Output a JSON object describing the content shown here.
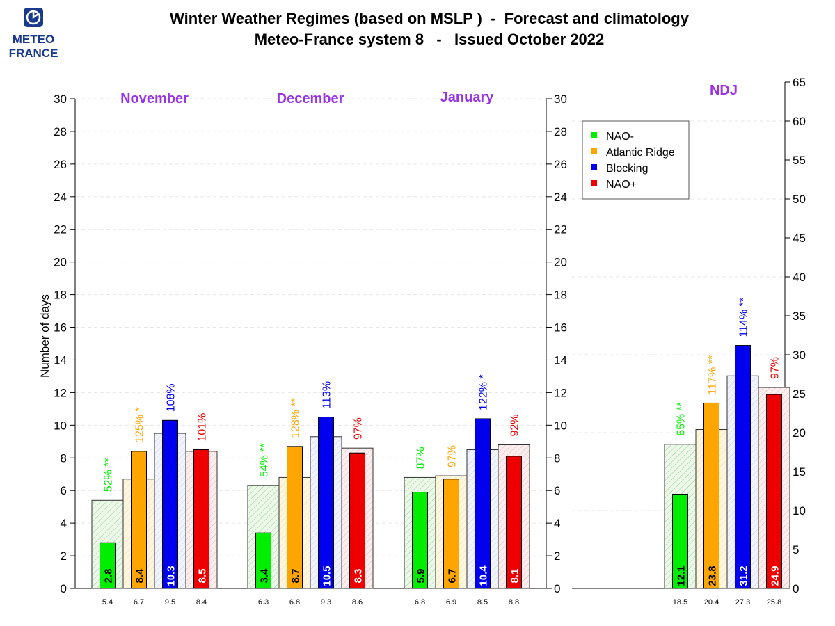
{
  "header": {
    "title_line1": "Winter Weather Regimes (based on MSLP )  -  Forecast and climatology",
    "title_line2": "Meteo-France system 8   -   Issued October 2022"
  },
  "logo": {
    "line1": "METEO",
    "line2": "FRANCE"
  },
  "colors": {
    "nao_minus": "#00ee00",
    "atlantic_ridge": "#ffa500",
    "blocking": "#0000ee",
    "nao_plus": "#ee0000",
    "month_label": "#9933e6"
  },
  "chart_data": [
    {
      "type": "bar",
      "ylabel": "Number of days",
      "ylim": [
        0,
        30
      ],
      "yticks": [
        0,
        2,
        4,
        6,
        8,
        10,
        12,
        14,
        16,
        18,
        20,
        22,
        24,
        26,
        28,
        30
      ],
      "legend_position": "top-right",
      "series_names": [
        "NAO-",
        "Atlantic Ridge",
        "Blocking",
        "NAO+"
      ],
      "groups": [
        {
          "label": "November",
          "forecast": [
            2.8,
            8.4,
            10.3,
            8.5
          ],
          "forecast_labels": [
            "2.8",
            "8.4",
            "10.3",
            "8.5"
          ],
          "climatology": [
            5.4,
            6.7,
            9.5,
            8.4
          ],
          "climatology_labels": [
            "5.4",
            "6.7",
            "9.5",
            "8.4"
          ],
          "percent": [
            "52% **",
            "125% *",
            "108%",
            "101%"
          ]
        },
        {
          "label": "December",
          "forecast": [
            3.4,
            8.7,
            10.5,
            8.3
          ],
          "forecast_labels": [
            "3.4",
            "8.7",
            "10.5",
            "8.3"
          ],
          "climatology": [
            6.3,
            6.8,
            9.3,
            8.6
          ],
          "climatology_labels": [
            "6.3",
            "6.8",
            "9.3",
            "8.6"
          ],
          "percent": [
            "54% **",
            "128% **",
            "113%",
            "97%"
          ]
        },
        {
          "label": "January",
          "forecast": [
            5.9,
            6.7,
            10.4,
            8.1
          ],
          "forecast_labels": [
            "5.9",
            "6.7",
            "10.4",
            "8.1"
          ],
          "climatology": [
            6.8,
            6.9,
            8.5,
            8.8
          ],
          "climatology_labels": [
            "6.8",
            "6.9",
            "8.5",
            "8.8"
          ],
          "percent": [
            "87%",
            "97%",
            "122% *",
            "92%"
          ]
        }
      ]
    },
    {
      "type": "bar",
      "ylim": [
        0,
        65
      ],
      "yticks": [
        0,
        5,
        10,
        15,
        20,
        25,
        30,
        35,
        40,
        45,
        50,
        55,
        60,
        65
      ],
      "groups": [
        {
          "label": "NDJ",
          "forecast": [
            12.1,
            23.8,
            31.2,
            24.9
          ],
          "forecast_labels": [
            "12.1",
            "23.8",
            "31.2",
            "24.9"
          ],
          "climatology": [
            18.5,
            20.4,
            27.3,
            25.8
          ],
          "climatology_labels": [
            "18.5",
            "20.4",
            "27.3",
            "25.8"
          ],
          "percent": [
            "65% **",
            "117% **",
            "114% **",
            "97%"
          ]
        }
      ]
    }
  ]
}
